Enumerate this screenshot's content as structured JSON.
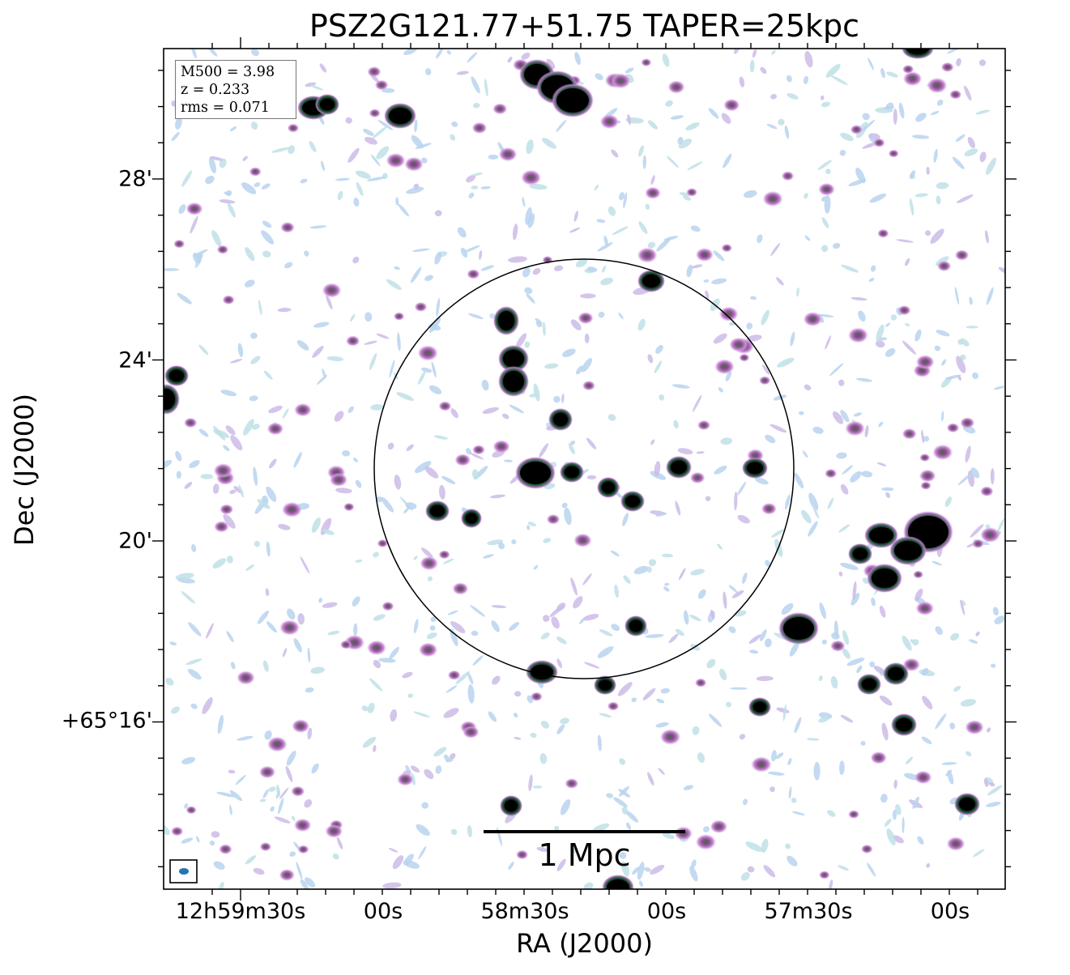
{
  "chart_data": {
    "type": "image",
    "title": "PSZ2G121.77+51.75 TAPER=25kpc",
    "xlabel": "RA (J2000)",
    "ylabel": "Dec (J2000)",
    "x_tick_labels": [
      "12h59m30s",
      "00s",
      "58m30s",
      "00s",
      "57m30s",
      "00s"
    ],
    "y_tick_labels": [
      "28'",
      "24'",
      "20'",
      "+65°16'"
    ],
    "annotations": {
      "mass": "M500 = 3.98",
      "redshift": "z = 0.233",
      "rms": "rms = 0.071"
    },
    "scale_bar_label": "1 Mpc",
    "colormap": "cubehelix-like (white to lightblue to violet to black)",
    "circle_overlay": true,
    "beam_marker": true
  }
}
